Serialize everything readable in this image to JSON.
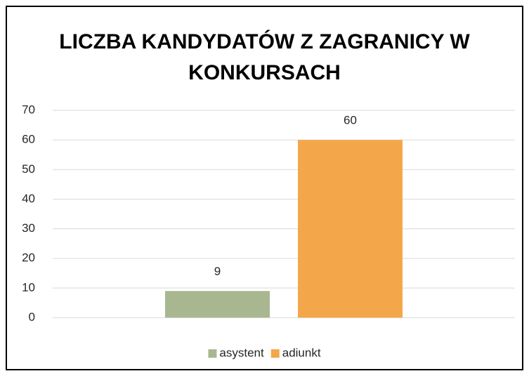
{
  "chart_data": {
    "type": "bar",
    "title": "LICZBA KANDYDATÓW Z ZAGRANICY W KONKURSACH",
    "categories": [
      null
    ],
    "series": [
      {
        "name": "asystent",
        "color": "#a9b790",
        "values": [
          9
        ]
      },
      {
        "name": "adiunkt",
        "color": "#f4a74a",
        "values": [
          60
        ]
      }
    ],
    "ylim": [
      0,
      70
    ],
    "yticks": [
      0,
      10,
      20,
      30,
      40,
      50,
      60,
      70
    ],
    "grid": true,
    "legend": "bottom",
    "data_labels": true
  }
}
